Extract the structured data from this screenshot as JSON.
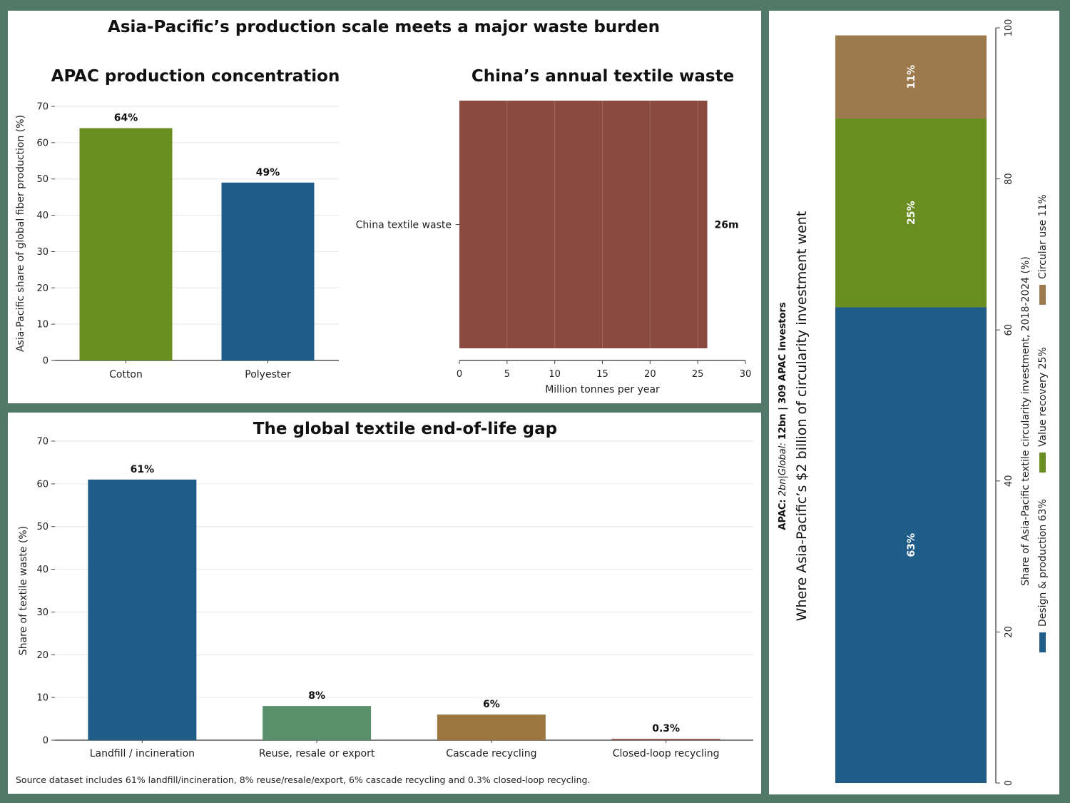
{
  "supertitle": "Asia-Pacific’s production scale meets a major waste burden",
  "chart_data": [
    {
      "type": "bar",
      "title": "APAC production concentration",
      "ylabel": "Asia-Pacific share of global fiber production (%)",
      "categories": [
        "Cotton",
        "Polyester"
      ],
      "values": [
        64,
        49
      ],
      "value_labels": [
        "64%",
        "49%"
      ],
      "colors": [
        "#6b8e23",
        "#1f5c87"
      ],
      "ylim": [
        0,
        70
      ],
      "yticks": [
        0,
        10,
        20,
        30,
        40,
        50,
        60,
        70
      ],
      "grid": true
    },
    {
      "type": "bar",
      "orientation": "horizontal",
      "title": "China’s annual textile waste",
      "xlabel": "Million tonnes per year",
      "categories": [
        "China textile waste"
      ],
      "values": [
        26
      ],
      "value_labels": [
        "26m"
      ],
      "colors": [
        "#8b4a3f"
      ],
      "xlim": [
        0,
        30
      ],
      "xticks": [
        0,
        5,
        10,
        15,
        20,
        25,
        30
      ],
      "grid": true
    },
    {
      "type": "bar",
      "title": "The global textile end-of-life gap",
      "ylabel": "Share of textile waste (%)",
      "categories": [
        "Landfill / incineration",
        "Reuse, resale or export",
        "Cascade recycling",
        "Closed-loop recycling"
      ],
      "values": [
        61,
        8,
        6,
        0.3
      ],
      "value_labels": [
        "61%",
        "8%",
        "6%",
        "0.3%"
      ],
      "colors": [
        "#1f5c87",
        "#5a8f6c",
        "#9c7740",
        "#8b4a3f"
      ],
      "ylim": [
        0,
        70
      ],
      "yticks": [
        0,
        10,
        20,
        30,
        40,
        50,
        60,
        70
      ],
      "grid": true,
      "note": "Source dataset includes 61% landfill/incineration, 8% reuse/resale/export, 6% cascade recycling and 0.3% closed-loop recycling."
    },
    {
      "type": "bar",
      "stacked": true,
      "title": "Where Asia-Pacific’s $2 billion of circularity investment went",
      "subtitle_bold_1": "APAC:",
      "subtitle_italic": " 2bn|Global: ",
      "subtitle_bold_2": "12bn  |  309 APAC investors",
      "ylabel": "Share of Asia-Pacific textile circularity investment, 2018-2024 (%)",
      "series": [
        {
          "name": "Design & production 63%",
          "value": 63,
          "value_label": "63%",
          "color": "#1f5c87"
        },
        {
          "name": "Value recovery 25%",
          "value": 25,
          "value_label": "25%",
          "color": "#6b8e23"
        },
        {
          "name": "Circular use 11%",
          "value": 11,
          "value_label": "11%",
          "color": "#9c7a4e"
        }
      ],
      "ylim": [
        0,
        100
      ],
      "yticks": [
        0,
        20,
        40,
        60,
        80,
        100
      ],
      "legend": "bottom-left"
    }
  ]
}
